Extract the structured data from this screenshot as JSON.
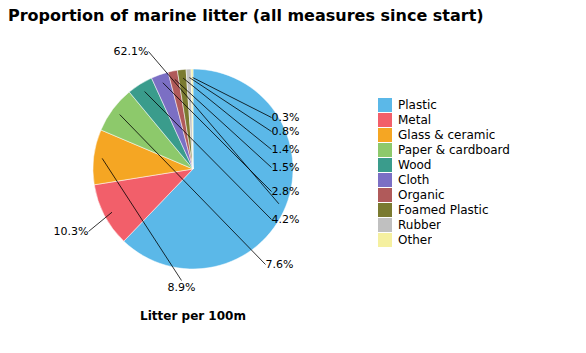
{
  "chart_data": {
    "type": "pie",
    "title": "Proportion of marine litter (all measures since start)",
    "xlabel": "Litter per 100m",
    "categories": [
      "Plastic",
      "Metal",
      "Glass & ceramic",
      "Paper & cardboard",
      "Wood",
      "Cloth",
      "Organic",
      "Foamed Plastic",
      "Rubber",
      "Other"
    ],
    "values": [
      62.1,
      10.3,
      8.9,
      7.6,
      4.2,
      2.8,
      1.5,
      1.4,
      0.8,
      0.3
    ],
    "value_labels": [
      "62.1%",
      "10.3%",
      "8.9%",
      "7.6%",
      "4.2%",
      "2.8%",
      "1.5%",
      "1.4%",
      "0.8%",
      "0.3%"
    ],
    "colors": [
      "#5bb8e8",
      "#f25f6a",
      "#f5a623",
      "#8dc96b",
      "#3a9c8c",
      "#7b6fc4",
      "#b05a5a",
      "#7a7a30",
      "#c0c0c0",
      "#f5f0a0"
    ],
    "data_labels": true,
    "legend": "right"
  }
}
